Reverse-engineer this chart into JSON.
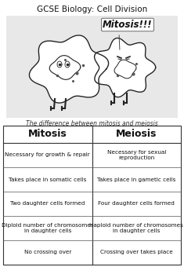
{
  "title": "GCSE Biology: Cell Division",
  "subtitle": "The difference between mitosis and meiosis",
  "mitosis_label": "Mitosis",
  "meiosis_label": "Meiosis",
  "bg_color": "#ffffff",
  "image_bg": "#e8e8e8",
  "border_color": "#333333",
  "title_fontsize": 7.5,
  "header_fontsize": 9,
  "cell_fontsize": 5.2,
  "subtitle_fontsize": 5.5,
  "row_data": [
    {
      "mit_plain1": "Necessary for ",
      "mit_bold": "growth & repair",
      "mit_plain2": "",
      "mei_plain1": "Necessary for ",
      "mei_bold": "sexual\nreproduction",
      "mei_plain2": ""
    },
    {
      "mit_plain1": "Takes place in ",
      "mit_bold": "somatic cells",
      "mit_plain2": "",
      "mei_plain1": "Takes place in ",
      "mei_bold": "gametic cells",
      "mei_plain2": ""
    },
    {
      "mit_plain1": "",
      "mit_bold": "Two daughter cells",
      "mit_plain2": " formed",
      "mei_plain1": "",
      "mei_bold": "Four daughter cells",
      "mei_plain2": " formed"
    },
    {
      "mit_plain1": "",
      "mit_bold": "Diploid",
      "mit_plain2": " number of chromosomes\nin daughter cells",
      "mei_plain1": "",
      "mei_bold": "Haploid",
      "mei_plain2": " number of chromosomes\nin daughter cells"
    },
    {
      "mit_plain1": "",
      "mit_bold": "No",
      "mit_plain2": " crossing over",
      "mei_plain1": "",
      "mei_bold": "Crossing over",
      "mei_plain2": " takes place"
    }
  ]
}
